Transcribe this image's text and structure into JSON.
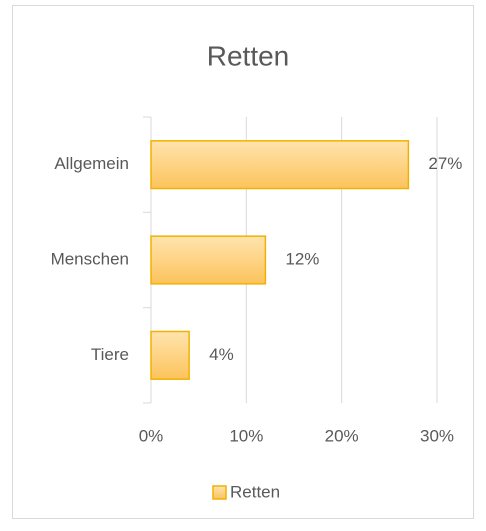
{
  "chart_data": {
    "type": "bar",
    "orientation": "horizontal",
    "title": "Retten",
    "categories": [
      "Allgemein",
      "Menschen",
      "Tiere"
    ],
    "series": [
      {
        "name": "Retten",
        "color": "#fcc35c",
        "values": [
          27,
          12,
          4
        ],
        "value_labels": [
          "27%",
          "12%",
          "4%"
        ]
      }
    ],
    "xlim": [
      0,
      30
    ],
    "xticks": [
      {
        "value": 0,
        "label": "0%"
      },
      {
        "value": 10,
        "label": "10%"
      },
      {
        "value": 20,
        "label": "20%"
      },
      {
        "value": 30,
        "label": "30%"
      }
    ],
    "grid": true,
    "legend": "bottom"
  }
}
